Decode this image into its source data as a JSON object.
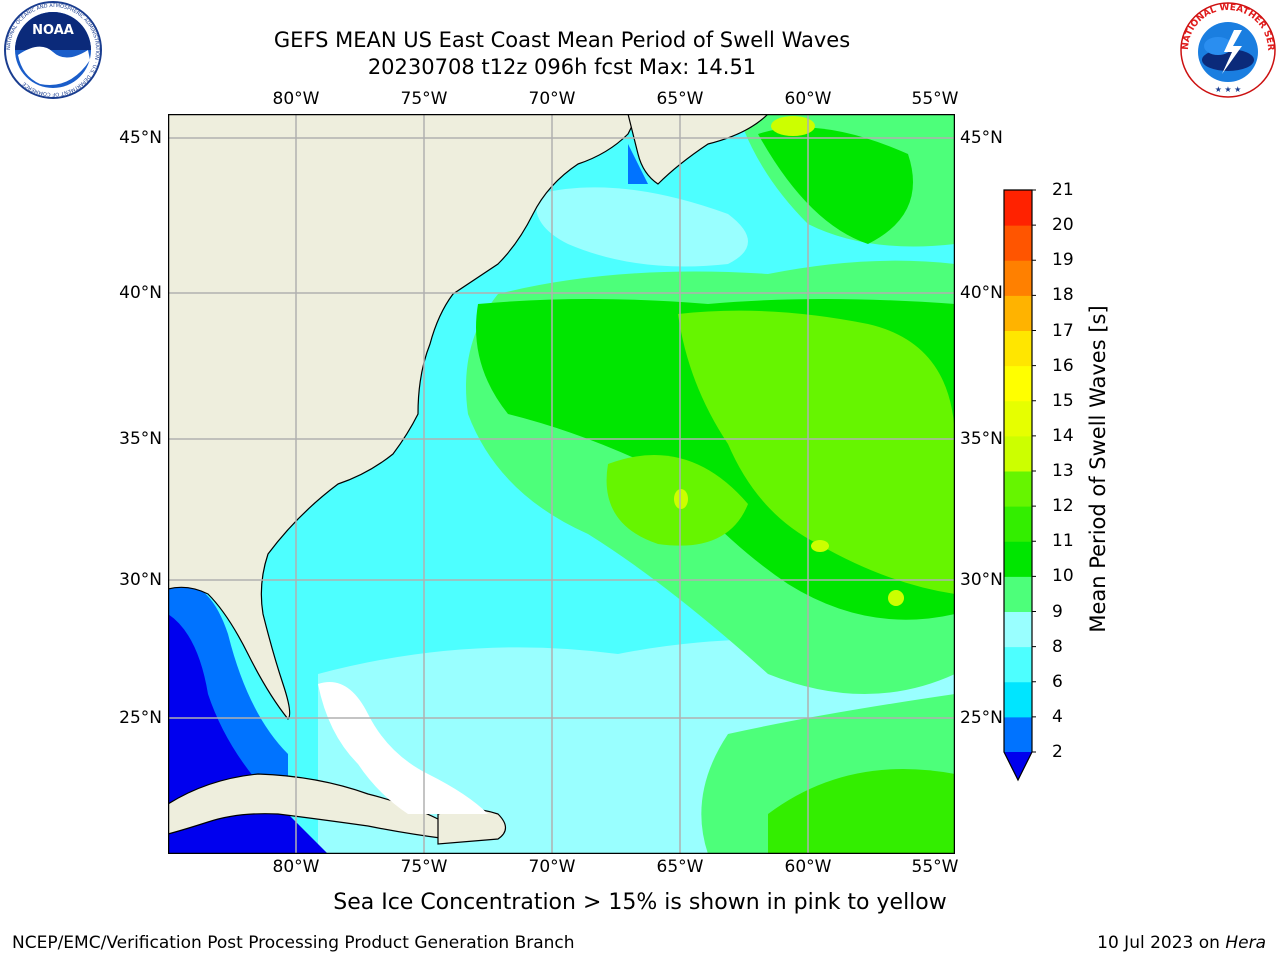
{
  "header": {
    "title": "GEFS MEAN US East Coast Mean Period of Swell Waves",
    "subtitle": "20230708 t12z 096h fcst   Max: 14.51"
  },
  "logos": {
    "noaa_text": "NOAA",
    "noaa_ring_text": "NATIONAL OCEANIC AND ATMOSPHERIC ADMINISTRATION · U.S. DEPARTMENT OF COMMERCE",
    "nws_ring_text": "NATIONAL WEATHER SERVICE"
  },
  "map": {
    "lon_labels": [
      "80°W",
      "75°W",
      "70°W",
      "65°W",
      "60°W",
      "55°W"
    ],
    "lat_labels": [
      "45°N",
      "40°N",
      "35°N",
      "30°N",
      "25°N"
    ],
    "ocean_color_shallow": "#4dffff",
    "land_color": "#eeeedd",
    "grid_color": "#b0b0b0"
  },
  "colorbar": {
    "label": "Mean Period of Swell Waves [s]",
    "ticks": [
      "2",
      "4",
      "6",
      "8",
      "9",
      "10",
      "11",
      "12",
      "13",
      "14",
      "15",
      "16",
      "17",
      "18",
      "19",
      "20",
      "21"
    ],
    "colors": [
      "#0073ff",
      "#00e5ff",
      "#4dffff",
      "#99ffff",
      "#4dff7a",
      "#00e600",
      "#33ee00",
      "#66f500",
      "#ccff00",
      "#e6ff00",
      "#ffff00",
      "#ffe600",
      "#ffb300",
      "#ff8000",
      "#ff5500",
      "#ff2200",
      "#ff0000"
    ],
    "under_color": "#0000ee"
  },
  "note": "Sea Ice Concentration > 15% is shown in pink to yellow",
  "footer": {
    "left": "NCEP/EMC/Verification Post Processing Product Generation Branch",
    "right_date": "10 Jul 2023 on ",
    "right_host": "Hera"
  }
}
